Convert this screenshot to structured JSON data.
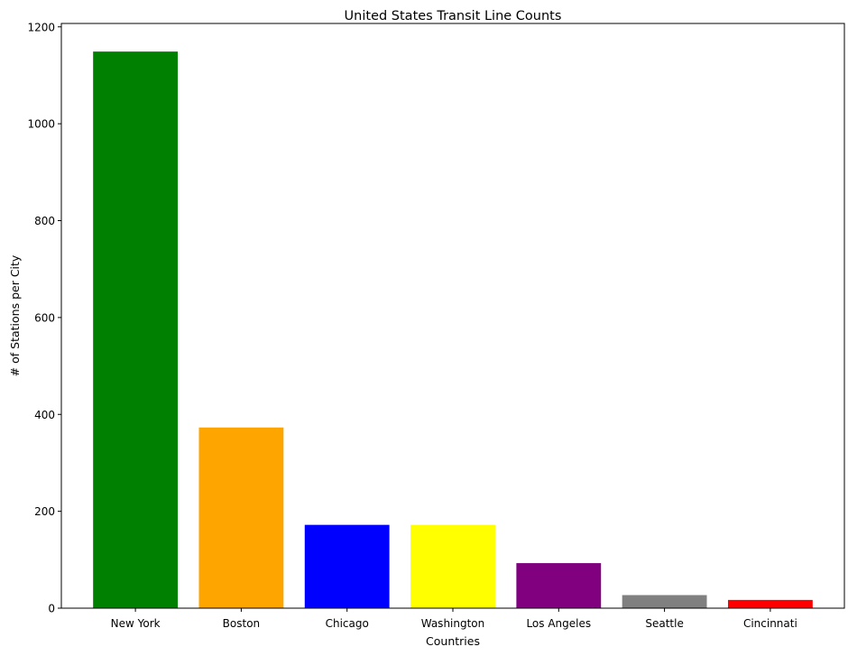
{
  "chart_data": {
    "type": "bar",
    "title": "United States Transit Line Counts",
    "xlabel": "Countries",
    "ylabel": "# of Stations per City",
    "categories": [
      "New York",
      "Boston",
      "Chicago",
      "Washington",
      "Los Angeles",
      "Seattle",
      "Cincinnati"
    ],
    "values": [
      1149,
      373,
      172,
      172,
      93,
      27,
      17
    ],
    "colors": [
      "#008000",
      "#ffa500",
      "#0000ff",
      "#ffff00",
      "#800080",
      "#808080",
      "#ff0000"
    ],
    "ylim": [
      0,
      1207
    ],
    "yticks": [
      0,
      200,
      400,
      600,
      800,
      1000,
      1200
    ],
    "grid": false,
    "legend": "none"
  }
}
